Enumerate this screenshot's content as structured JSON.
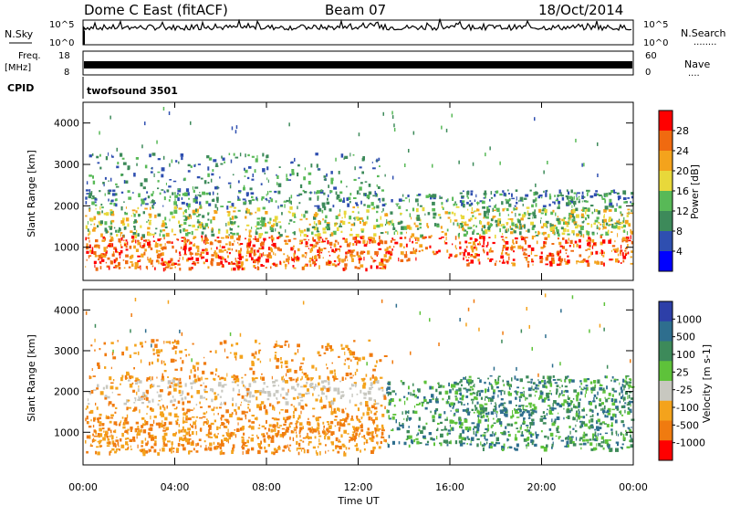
{
  "header": {
    "title": "Dome C East (fitACF)",
    "beam": "Beam 07",
    "date": "18/Oct/2014"
  },
  "aux_panels": {
    "nsky_label": "N.Sky",
    "nsearch_label": "N.Search",
    "nsearch_dots": "........",
    "freq_label_1": "Freq.",
    "freq_label_2": "[MHz]",
    "nave_label": "Nave",
    "nave_dots": "....",
    "cpid_label": "CPID",
    "cpid_value": "twofsound 3501",
    "noise_ticks_left": [
      "10^5",
      "10^0"
    ],
    "noise_ticks_right": [
      "10^5",
      "10^0"
    ],
    "freq_ticks": [
      "18",
      "8"
    ],
    "nave_ticks": [
      "60",
      "0"
    ]
  },
  "colors": {
    "power_scale": [
      "#0000ff",
      "#2f4fb0",
      "#3d8a5a",
      "#58b957",
      "#e8d83a",
      "#f4a31c",
      "#f06a10",
      "#ff0000"
    ],
    "velocity_scale": [
      "#2d3fa8",
      "#2e6e8e",
      "#3d8a5a",
      "#5ec23a",
      "#c8c8c0",
      "#f4a31c",
      "#f07b10",
      "#ff0000"
    ]
  },
  "chart_data": [
    {
      "type": "heatmap",
      "name": "power-panel",
      "xlabel": "",
      "ylabel": "Slant Range [km]",
      "ylim": [
        200,
        4500
      ],
      "yticks": [
        "1000",
        "2000",
        "3000",
        "4000"
      ],
      "colorbar_label": "Power [dB]",
      "colorbar_ticks": [
        "4",
        "8",
        "12",
        "16",
        "20",
        "24",
        "28"
      ],
      "description_values": {
        "dominant_range_km": [
          500,
          2300
        ],
        "strongest_band_km": [
          600,
          1200
        ]
      }
    },
    {
      "type": "heatmap",
      "name": "velocity-panel",
      "xlabel": "Time UT",
      "ylabel": "Slant Range [km]",
      "ylim": [
        200,
        4500
      ],
      "yticks": [
        "1000",
        "2000",
        "3000",
        "4000"
      ],
      "xticks": [
        "00:00",
        "04:00",
        "08:00",
        "12:00",
        "16:00",
        "20:00",
        "00:00"
      ],
      "colorbar_label": "Velocity [m s-1]",
      "colorbar_ticks": [
        "1000",
        "500",
        "100",
        "25",
        "-25",
        "-100",
        "-500",
        "-1000"
      ]
    }
  ]
}
